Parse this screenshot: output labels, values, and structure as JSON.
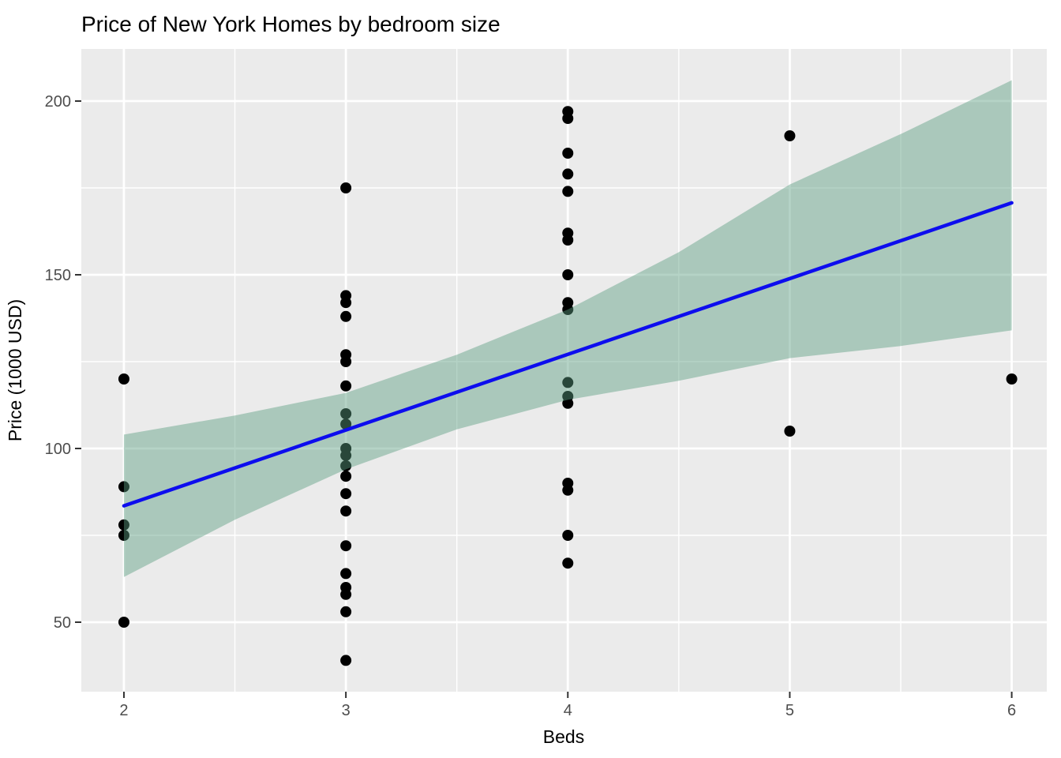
{
  "chart_data": {
    "type": "scatter",
    "title": "Price of New York Homes by bedroom size",
    "xlabel": "Beds",
    "ylabel": "Price (1000 USD)",
    "x_ticks": [
      2,
      3,
      4,
      5,
      6
    ],
    "y_ticks": [
      50,
      100,
      150,
      200
    ],
    "x_minor_ticks": [
      2.5,
      3.5,
      4.5,
      5.5
    ],
    "y_minor_ticks": [
      75,
      125,
      175
    ],
    "xlim": [
      1.808,
      6.158
    ],
    "ylim": [
      30,
      215
    ],
    "grid": true,
    "legend": false,
    "colors": {
      "panel_background": "#EBEBEB",
      "gridline": "#FFFFFF",
      "point": "#000000",
      "regression_line": "#0D0DEE",
      "ci_band_fill": "rgba(90,157,128,0.45)",
      "tick_label": "#4D4D4D",
      "tick_mark": "#333333"
    },
    "points": [
      {
        "x": 2,
        "y": [
          120,
          89,
          78,
          75,
          50
        ]
      },
      {
        "x": 3,
        "y": [
          175,
          144,
          142,
          138,
          127,
          125,
          118,
          110,
          107,
          100,
          98,
          95,
          92,
          87,
          82,
          72,
          64,
          60,
          58,
          53,
          39
        ]
      },
      {
        "x": 4,
        "y": [
          197,
          195,
          185,
          179,
          174,
          162,
          160,
          150,
          142,
          140,
          119,
          115,
          113,
          90,
          88,
          75,
          67
        ]
      },
      {
        "x": 5,
        "y": [
          190,
          105
        ]
      },
      {
        "x": 6,
        "y": [
          120
        ]
      }
    ],
    "regression_line": {
      "x": [
        2,
        6
      ],
      "y": [
        83.5,
        170.7
      ]
    },
    "ci_band": {
      "x": [
        2,
        2.5,
        3,
        3.5,
        4,
        4.5,
        5,
        5.5,
        6
      ],
      "upper": [
        104,
        109.5,
        116,
        127,
        140,
        156.5,
        176,
        190.5,
        206
      ],
      "lower": [
        63,
        79.5,
        94,
        105.5,
        114,
        119.5,
        126,
        129.5,
        134
      ]
    }
  }
}
